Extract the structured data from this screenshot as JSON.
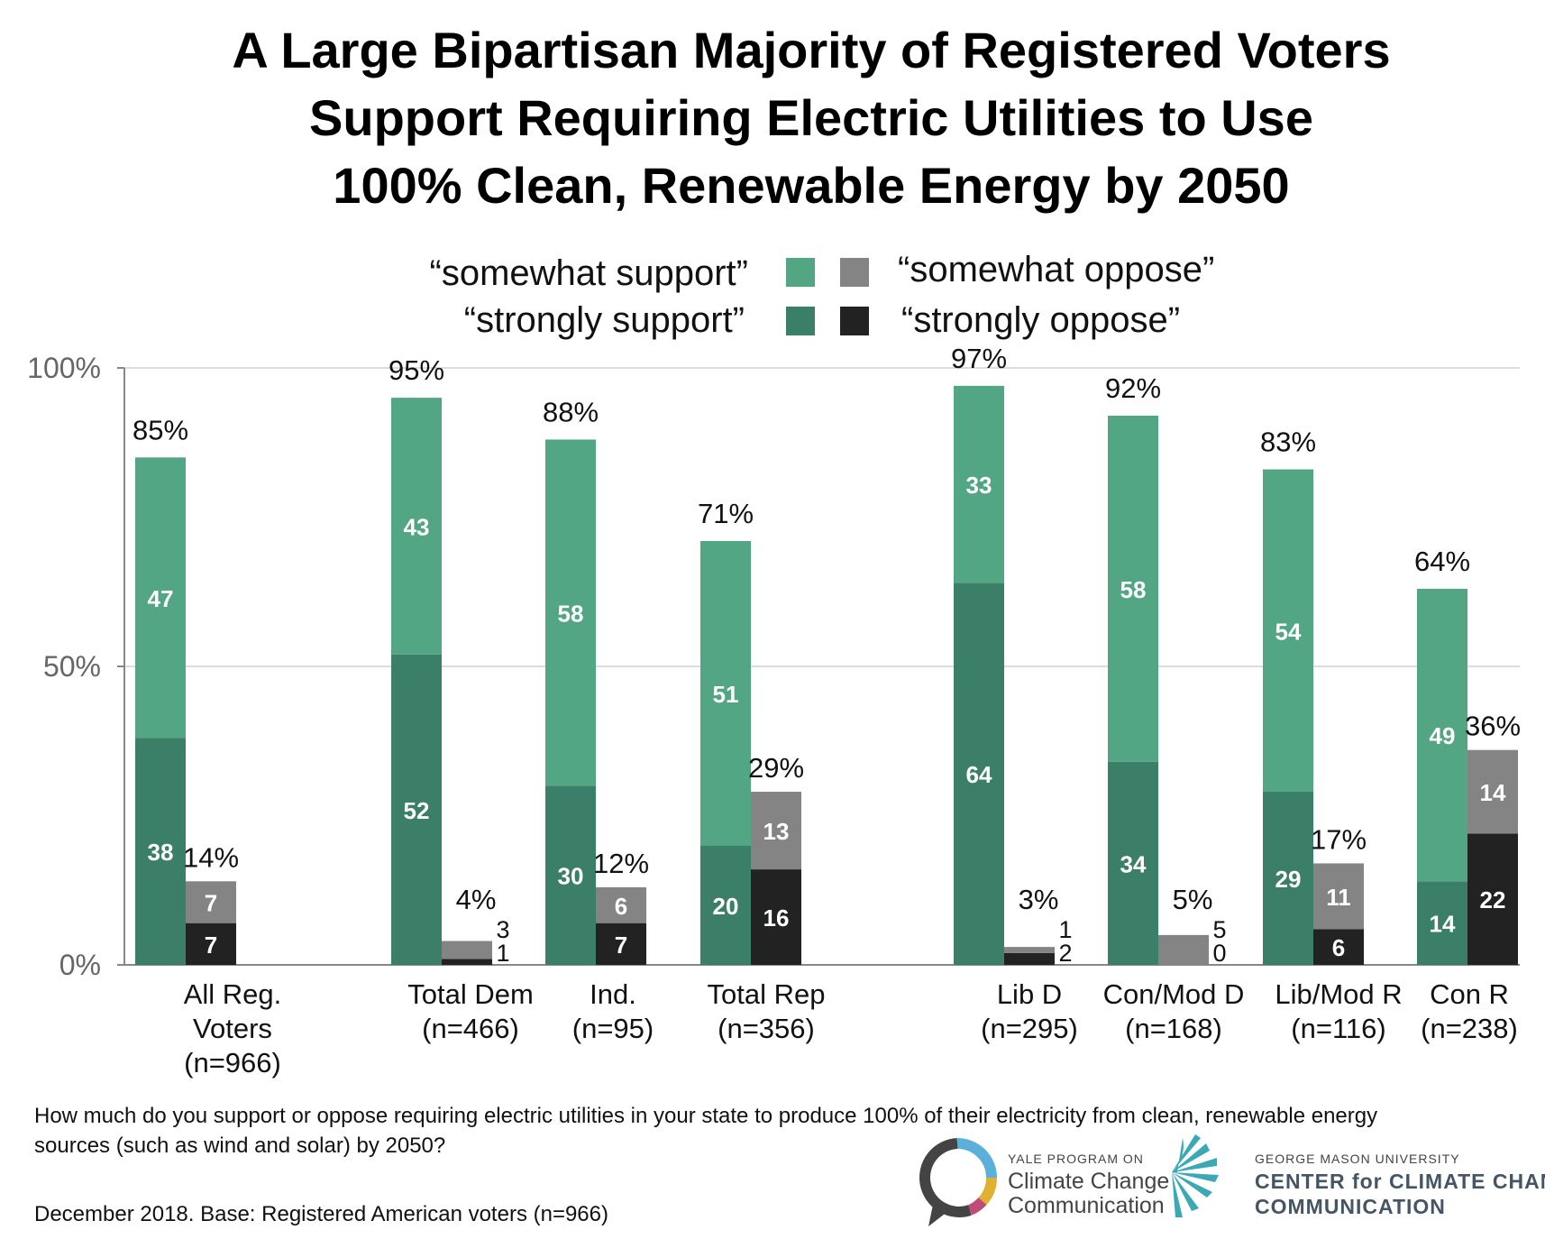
{
  "title": [
    "A Large Bipartisan Majority of Registered Voters",
    "Support Requiring Electric Utilities to Use",
    "100% Clean, Renewable Energy by 2050"
  ],
  "legend": {
    "somewhat_support": {
      "label": "“somewhat support”",
      "color": "#52a684"
    },
    "strongly_support": {
      "label": "“strongly support”",
      "color": "#3c7f68"
    },
    "somewhat_oppose": {
      "label": "“somewhat oppose”",
      "color": "#848484"
    },
    "strongly_oppose": {
      "label": "“strongly oppose”",
      "color": "#222222"
    }
  },
  "chart_data": {
    "type": "bar",
    "stacked": true,
    "ylim": [
      0,
      100
    ],
    "yticks": [
      {
        "value": 0,
        "label": "0%"
      },
      {
        "value": 50,
        "label": "50%"
      },
      {
        "value": 100,
        "label": "100%"
      }
    ],
    "grid": true,
    "legend_position": "top",
    "groups": [
      {
        "label": [
          "All Reg.",
          "Voters",
          "(n=966)"
        ],
        "support": {
          "strongly": 38,
          "somewhat": 47,
          "total": 85,
          "total_label": "85%"
        },
        "oppose": {
          "strongly": 7,
          "somewhat": 7,
          "total": 14,
          "total_label": "14%"
        }
      },
      {
        "label": [
          "Total Dem",
          "(n=466)"
        ],
        "support": {
          "strongly": 52,
          "somewhat": 43,
          "total": 95,
          "total_label": "95%"
        },
        "oppose": {
          "strongly": 1,
          "somewhat": 3,
          "total": 4,
          "total_label": "4%"
        }
      },
      {
        "label": [
          "Ind.",
          "(n=95)"
        ],
        "support": {
          "strongly": 30,
          "somewhat": 58,
          "total": 88,
          "total_label": "88%"
        },
        "oppose": {
          "strongly": 7,
          "somewhat": 6,
          "total": 12,
          "total_label": "12%"
        }
      },
      {
        "label": [
          "Total Rep",
          "(n=356)"
        ],
        "support": {
          "strongly": 20,
          "somewhat": 51,
          "total": 71,
          "total_label": "71%"
        },
        "oppose": {
          "strongly": 16,
          "somewhat": 13,
          "total": 29,
          "total_label": "29%"
        }
      },
      {
        "label": [
          "Lib D",
          "(n=295)"
        ],
        "support": {
          "strongly": 64,
          "somewhat": 33,
          "total": 97,
          "total_label": "97%"
        },
        "oppose": {
          "strongly": 2,
          "somewhat": 1,
          "total": 3,
          "total_label": "3%"
        }
      },
      {
        "label": [
          "Con/Mod D",
          "(n=168)"
        ],
        "support": {
          "strongly": 34,
          "somewhat": 58,
          "total": 92,
          "total_label": "92%"
        },
        "oppose": {
          "strongly": 0,
          "somewhat": 5,
          "total": 5,
          "total_label": "5%"
        }
      },
      {
        "label": [
          "Lib/Mod R",
          "(n=116)"
        ],
        "support": {
          "strongly": 29,
          "somewhat": 54,
          "total": 83,
          "total_label": "83%"
        },
        "oppose": {
          "strongly": 6,
          "somewhat": 11,
          "total": 17,
          "total_label": "17%"
        }
      },
      {
        "label": [
          "Con R",
          "(n=238)"
        ],
        "support": {
          "strongly": 14,
          "somewhat": 49,
          "total": 64,
          "total_label": "64%"
        },
        "oppose": {
          "strongly": 22,
          "somewhat": 14,
          "total": 36,
          "total_label": "36%"
        }
      }
    ]
  },
  "footer": {
    "question": [
      "How much do you support or oppose requiring electric utilities in your state to produce 100% of their electricity from clean, renewable energy",
      "sources (such as wind and solar) by 2050?"
    ],
    "base": "December 2018. Base: Registered American voters (n=966)"
  },
  "logos": {
    "yale": {
      "small": "YALE PROGRAM ON",
      "line1": "Climate Change",
      "line2": "Communication"
    },
    "gmu": {
      "small": "GEORGE MASON UNIVERSITY",
      "line1": "CENTER for CLIMATE CHANGE",
      "line2": "COMMUNICATION"
    }
  }
}
